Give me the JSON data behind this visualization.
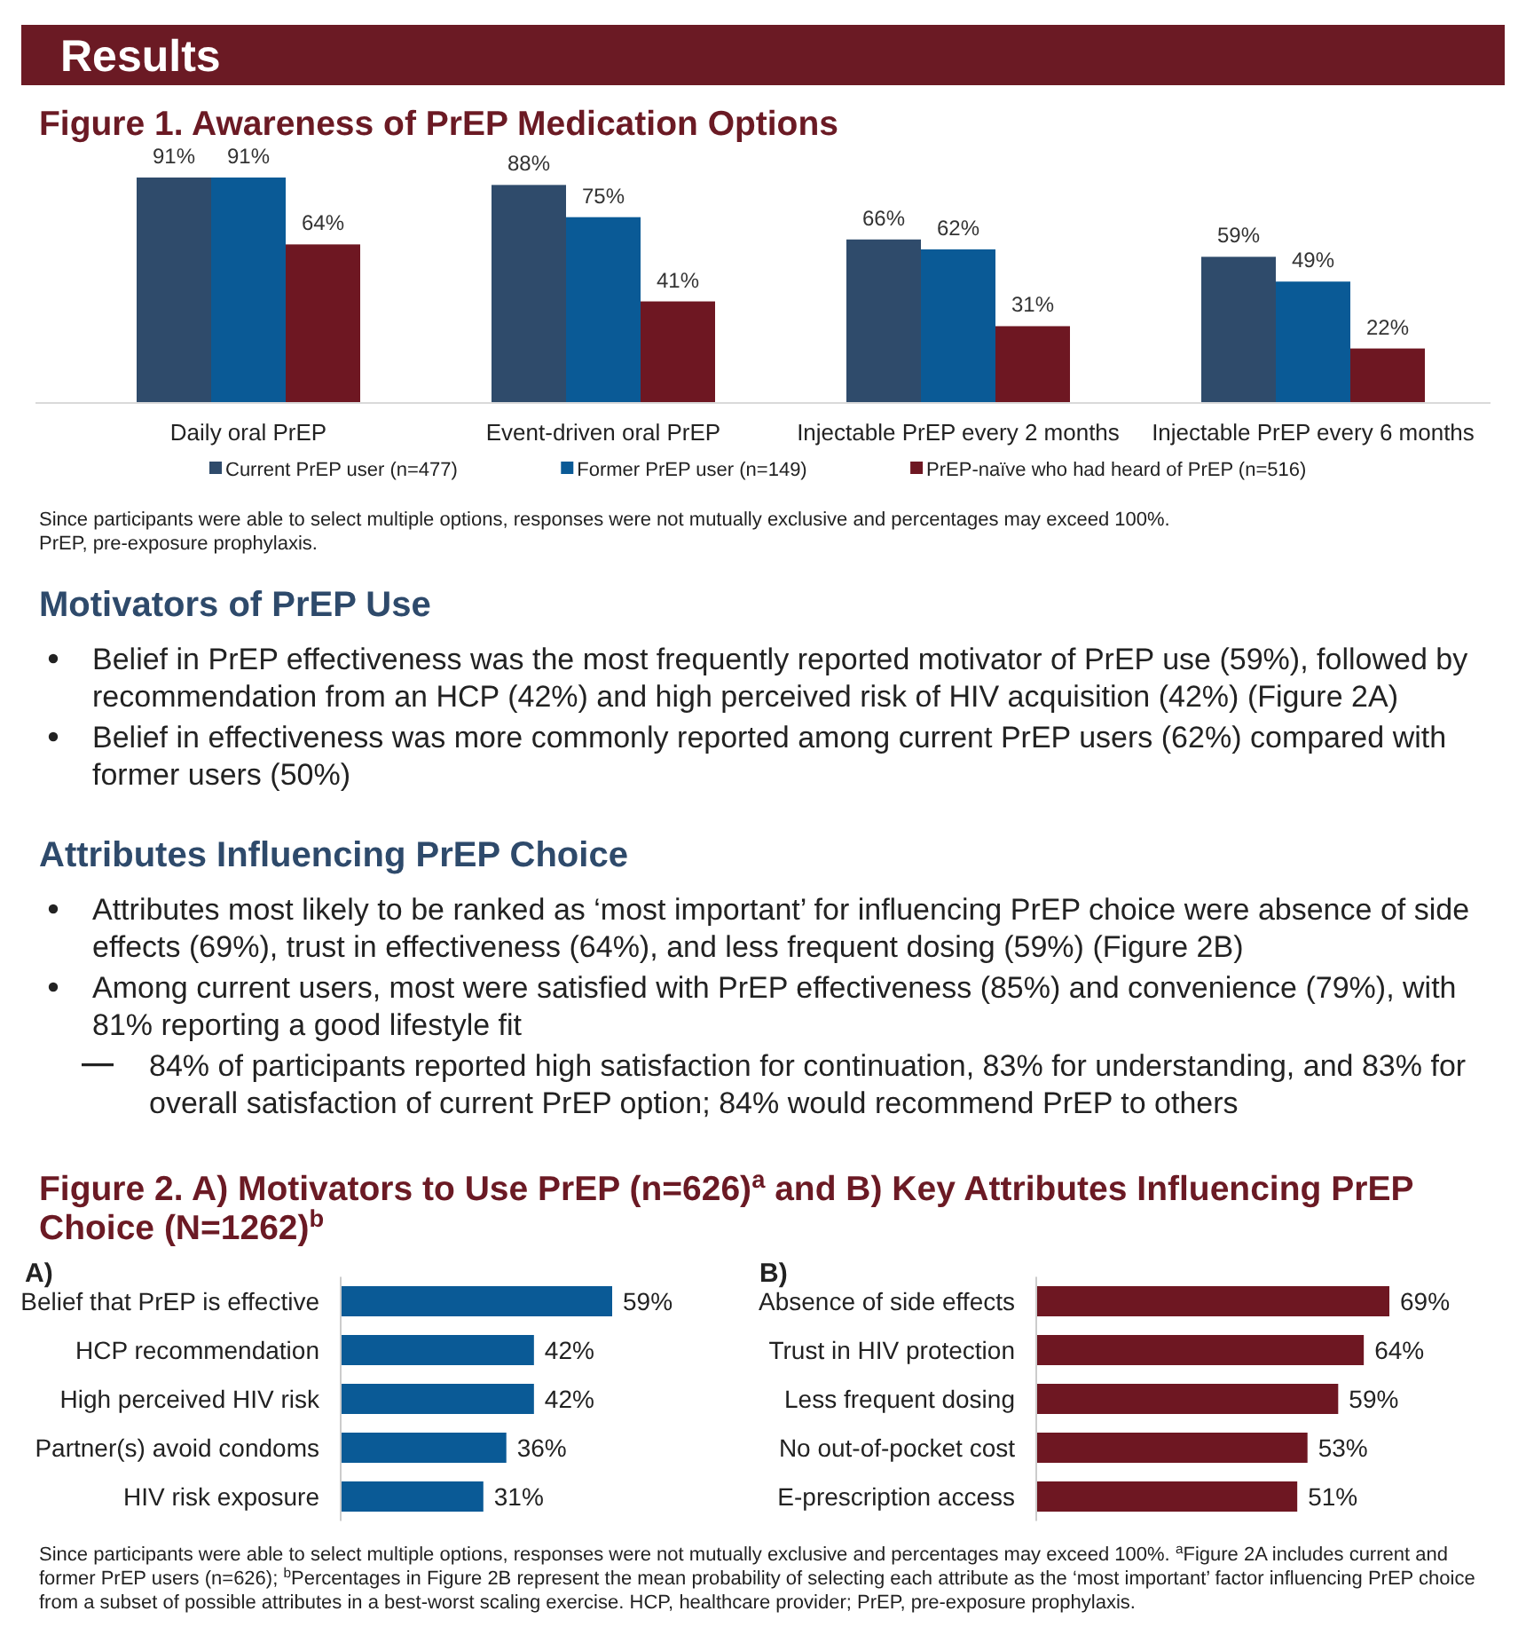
{
  "chart_data": [
    {
      "type": "other",
      "title": "Results"
    },
    {
      "type": "bar",
      "title": "Figure 1. Awareness of PrEP Medication Options",
      "categories": [
        "Daily oral PrEP",
        "Event-driven oral PrEP",
        "Injectable PrEP every 2 months",
        "Injectable PrEP every 6 months"
      ],
      "series": [
        {
          "name": "Current PrEP user (n=477)",
          "color": "#2f4b6b",
          "values": [
            91,
            88,
            66,
            59
          ],
          "value_labels": [
            "91%",
            "88%",
            "66%",
            "59%"
          ]
        },
        {
          "name": "Former PrEP user (n=149)",
          "color": "#0a5a96",
          "values": [
            91,
            75,
            62,
            49
          ],
          "value_labels": [
            "91%",
            "75%",
            "62%",
            "49%"
          ]
        },
        {
          "name": "PrEP-naïve who had heard of PrEP (n=516)",
          "color": "#6e1722",
          "values": [
            64,
            41,
            31,
            22
          ],
          "value_labels": [
            "64%",
            "41%",
            "31%",
            "22%"
          ]
        }
      ],
      "legend": "bottom",
      "annotations": [
        "Since participants were able to select multiple options, responses were not mutually exclusive and percentages may exceed 100%.",
        "PrEP, pre-exposure prophylaxis."
      ]
    },
    {
      "type": "other",
      "title": "Motivators of PrEP Use",
      "annotations": [
        "Belief in PrEP effectiveness was the most frequently reported motivator of PrEP use (59%), followed by recommendation from an HCP (42%) and high perceived risk of HIV acquisition (42%) (Figure 2A)",
        "Belief in effectiveness was more commonly reported among current PrEP users (62%) compared with former users (50%)"
      ]
    },
    {
      "type": "other",
      "title": "Attributes Influencing PrEP Choice",
      "annotations": [
        "Attributes most likely to be ranked as ‘most important’ for influencing PrEP choice were absence of side effects (69%), trust in effectiveness (64%), and less frequent dosing (59%) (Figure 2B)",
        "Among current users, most were satisfied with PrEP effectiveness (85%) and convenience (79%), with 81% reporting a good lifestyle fit",
        "84% of participants reported high satisfaction for continuation, 83% for understanding, and 83% for overall satisfaction of current PrEP option; 84% would recommend PrEP to others"
      ]
    },
    {
      "type": "bar",
      "orientation": "horizontal",
      "title": "Figure 2. A) Motivators to Use PrEP (n=626)$^{a}$ and B) Key Attributes Influencing PrEP Choice (N=1262)$^{b}$",
      "subtitle": "A)",
      "categories": [
        "Belief that PrEP is effective",
        "HCP recommendation",
        "High perceived HIV risk",
        "Partner(s) avoid condoms",
        "HIV risk exposure"
      ],
      "series": [
        {
          "color": "#0a5a96",
          "values": [
            59,
            42,
            42,
            36,
            31
          ],
          "value_labels": [
            "59%",
            "42%",
            "42%",
            "36%",
            "31%"
          ]
        }
      ]
    },
    {
      "type": "bar",
      "orientation": "horizontal",
      "subtitle": "B)",
      "categories": [
        "Absence of side effects",
        "Trust in HIV protection",
        "Less frequent dosing",
        "No out-of-pocket cost",
        "E-prescription access"
      ],
      "series": [
        {
          "color": "#6e1722",
          "values": [
            69,
            64,
            59,
            53,
            51
          ],
          "value_labels": [
            "69%",
            "64%",
            "59%",
            "53%",
            "51%"
          ]
        }
      ],
      "annotations": [
        "Since participants were able to select multiple options, responses were not mutually exclusive and percentages may exceed 100%. $^{a}$Figure 2A includes current and former PrEP users (n=626); $^{b}$Percentages in Figure 2B represent the mean probability of selecting each attribute as the ‘most important’ factor influencing PrEP choice from a subset of possible attributes in a best-worst scaling exercise. HCP, healthcare provider; PrEP, pre-exposure prophylaxis."
      ]
    }
  ]
}
